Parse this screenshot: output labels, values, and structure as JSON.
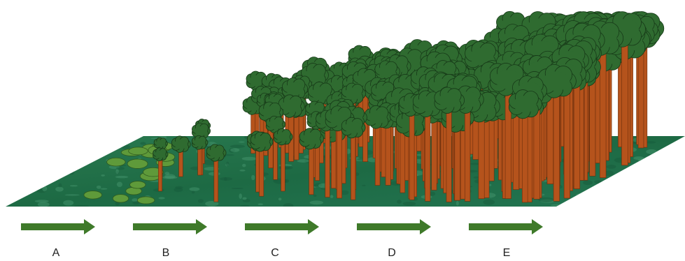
{
  "stages": [
    {
      "label": "A"
    },
    {
      "label": "B"
    },
    {
      "label": "C"
    },
    {
      "label": "D"
    },
    {
      "label": "E"
    }
  ]
}
